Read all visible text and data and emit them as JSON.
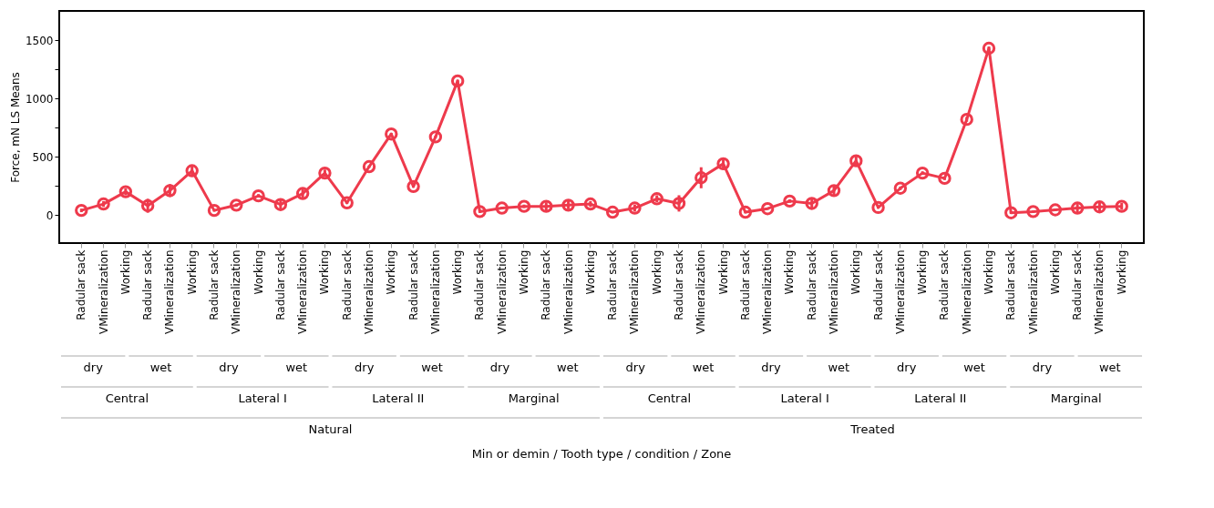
{
  "chart_data": {
    "type": "line",
    "ylabel": "Force, mN LS Means",
    "categories": [
      "Radular sack",
      "VMineralization",
      "Working",
      "Radular sack",
      "VMineralization",
      "Working",
      "Radular sack",
      "VMineralization",
      "Working",
      "Radular sack",
      "VMineralization",
      "Working",
      "Radular sack",
      "VMineralization",
      "Working",
      "Radular sack",
      "VMineralization",
      "Working",
      "Radular sack",
      "VMineralization",
      "Working",
      "Radular sack",
      "VMineralization",
      "Working",
      "Radular sack",
      "VMineralization",
      "Working",
      "Radular sack",
      "VMineralization",
      "Working",
      "Radular sack",
      "VMineralization",
      "Working",
      "Radular sack",
      "VMineralization",
      "Working",
      "Radular sack",
      "VMineralization",
      "Working",
      "Radular sack",
      "VMineralization",
      "Working",
      "Radular sack",
      "VMineralization",
      "Working",
      "Radular sack",
      "VMineralization",
      "Working"
    ],
    "series": [
      {
        "color": "#ee3a4c",
        "values": [
          40,
          95,
          200,
          80,
          210,
          380,
          40,
          85,
          165,
          90,
          185,
          360,
          105,
          415,
          695,
          245,
          670,
          1150,
          30,
          60,
          75,
          75,
          85,
          95,
          25,
          60,
          140,
          100,
          320,
          440,
          25,
          55,
          120,
          100,
          210,
          465,
          65,
          230,
          360,
          315,
          820,
          1430,
          20,
          30,
          45,
          60,
          70,
          75
        ],
        "errors": [
          15,
          25,
          30,
          60,
          55,
          50,
          10,
          15,
          15,
          45,
          40,
          30,
          10,
          10,
          10,
          10,
          10,
          10,
          10,
          10,
          15,
          35,
          35,
          25,
          10,
          30,
          30,
          70,
          90,
          50,
          10,
          10,
          15,
          40,
          45,
          45,
          10,
          15,
          15,
          15,
          20,
          15,
          10,
          10,
          10,
          35,
          40,
          30
        ]
      }
    ],
    "ylim": [
      -240,
      1750
    ],
    "yticks": [
      0,
      {
        "value": 250,
        "label": null
      },
      500,
      {
        "value": 750,
        "label": null
      },
      1000,
      {
        "value": 1250,
        "label": null
      },
      1500
    ],
    "annotations": [
      "dry",
      "wet",
      "dry",
      "wet",
      "dry",
      "wet",
      "dry",
      "wet",
      "dry",
      "wet",
      "dry",
      "wet",
      "dry",
      "wet",
      "dry",
      "wet",
      "Central",
      "Lateral I",
      "Lateral II",
      "Marginal",
      "Central",
      "Lateral I",
      "Lateral II",
      "Marginal",
      "Natural",
      "Treated",
      "Min or demin / Tooth type / condition / Zone"
    ],
    "grid": false,
    "marker": "circle",
    "line_style": "solid"
  }
}
